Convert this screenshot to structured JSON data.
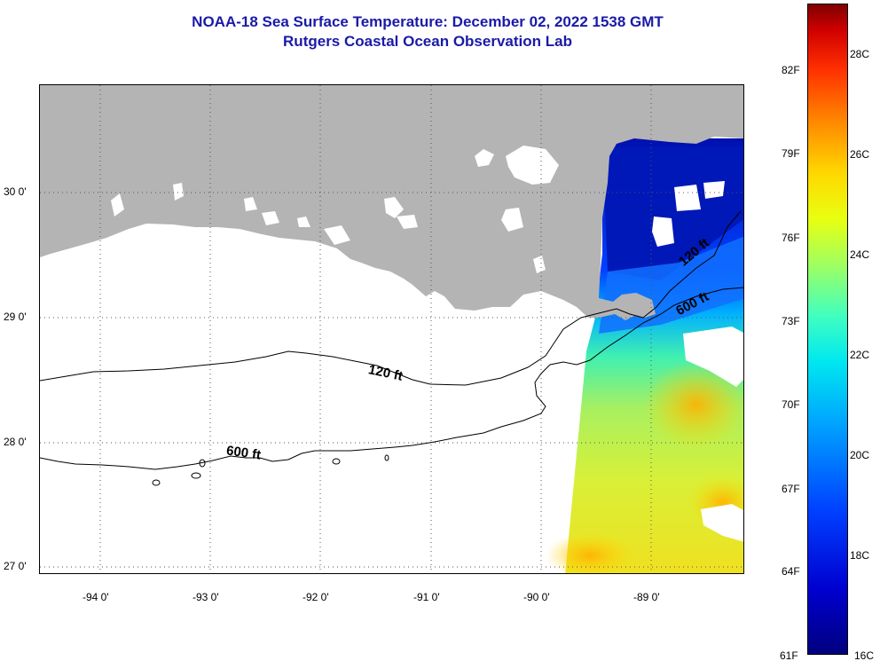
{
  "title": {
    "line1": "NOAA-18 Sea Surface Temperature:  December 02, 2022 1538 GMT",
    "line2": "Rutgers Coastal Ocean Observation Lab"
  },
  "map": {
    "lon_ticks": [
      "-94 0'",
      "-93 0'",
      "-92 0'",
      "-91 0'",
      "-90 0'",
      "-89 0'"
    ],
    "lat_ticks": [
      "30 0'",
      "29 0'",
      "28 0'",
      "27 0'"
    ],
    "contours": [
      "120 ft",
      "600 ft",
      "120 ft",
      "600 ft"
    ],
    "land_color": "#b4b4b4",
    "cloud_color": "#ffffff"
  },
  "colorbar": {
    "fahrenheit": [
      "82F",
      "79F",
      "76F",
      "73F",
      "70F",
      "67F",
      "64F",
      "61F"
    ],
    "celsius": [
      "28C",
      "26C",
      "24C",
      "22C",
      "20C",
      "18C",
      "16C"
    ],
    "range_celsius": [
      16,
      29.5
    ]
  }
}
